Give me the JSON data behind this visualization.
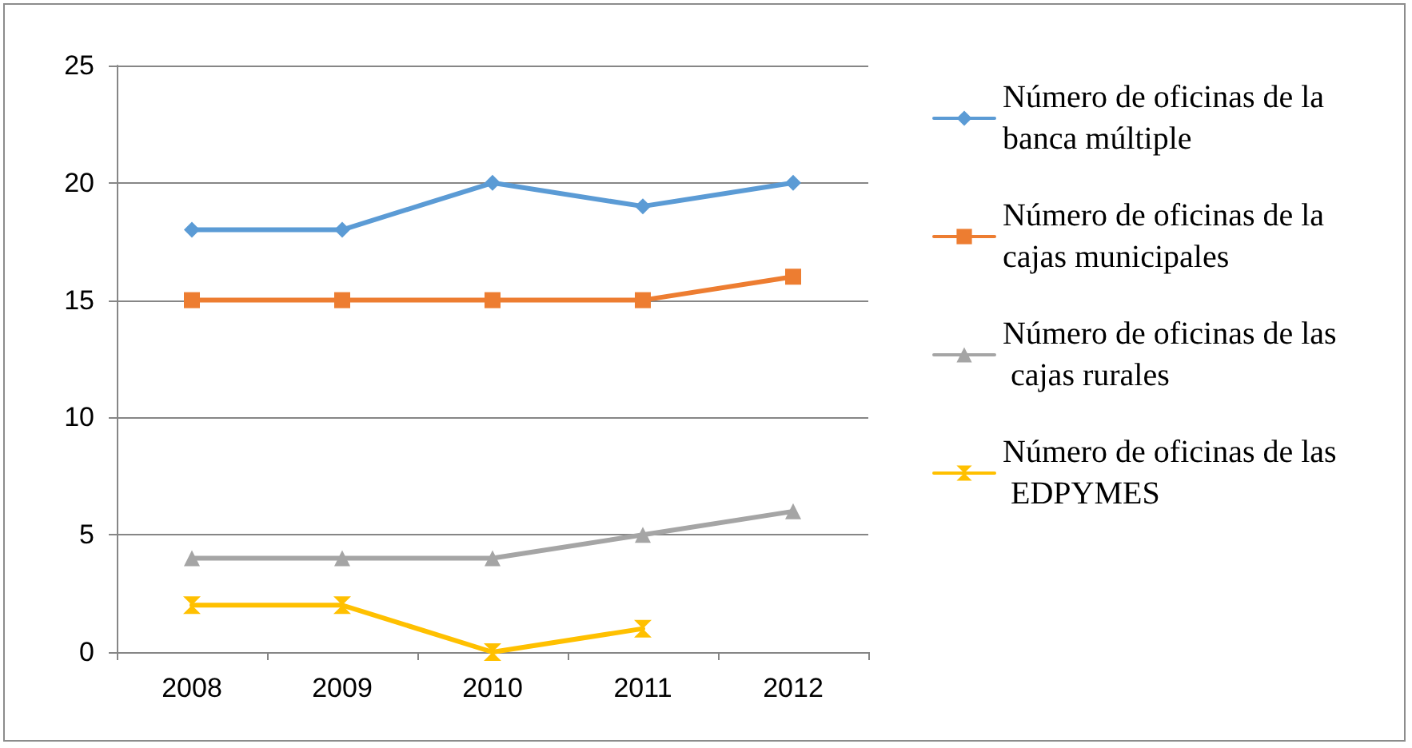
{
  "chart_data": {
    "type": "line",
    "categories": [
      "2008",
      "2009",
      "2010",
      "2011",
      "2012"
    ],
    "series": [
      {
        "name": "Número de oficinas de la banca múltiple",
        "color": "#5b9bd5",
        "marker": "diamond",
        "values": [
          18,
          18,
          20,
          19,
          20
        ]
      },
      {
        "name": "Número de oficinas de la cajas municipales",
        "color": "#ed7d31",
        "marker": "square",
        "values": [
          15,
          15,
          15,
          15,
          16
        ]
      },
      {
        "name": "Número de oficinas de las cajas rurales",
        "color": "#a5a5a5",
        "marker": "triangle",
        "values": [
          4,
          4,
          4,
          5,
          6
        ]
      },
      {
        "name": "Número de oficinas de las EDPYMES",
        "color": "#ffc000",
        "marker": "star",
        "values": [
          2,
          2,
          0,
          1,
          null
        ]
      }
    ],
    "ylim": [
      0,
      25
    ],
    "yticks": [
      0,
      5,
      10,
      15,
      20,
      25
    ],
    "grid": "y",
    "legend": "right",
    "line_style": "solid"
  }
}
